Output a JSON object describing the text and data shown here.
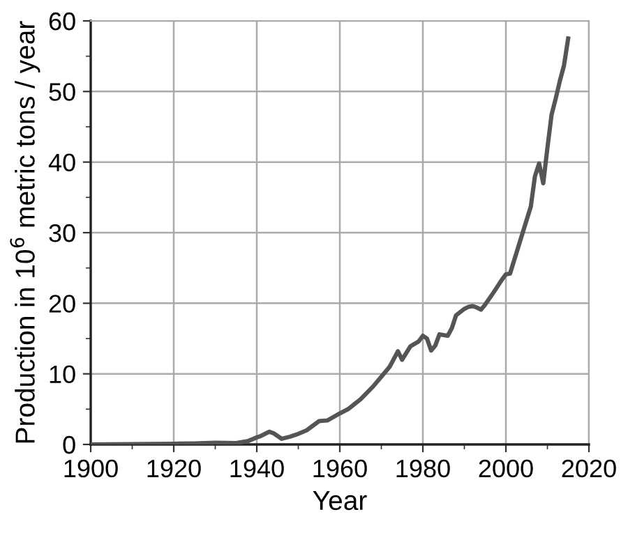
{
  "chart_data": {
    "type": "line",
    "xlabel": "Year",
    "ylabel": "Production in 10$^{6}$ metric tons / year",
    "x": [
      1900,
      1910,
      1920,
      1925,
      1930,
      1935,
      1938,
      1940,
      1941,
      1943,
      1944,
      1946,
      1948,
      1950,
      1952,
      1955,
      1957,
      1960,
      1962,
      1965,
      1968,
      1970,
      1972,
      1974,
      1975,
      1977,
      1979,
      1980,
      1981,
      1982,
      1983,
      1984,
      1986,
      1987,
      1988,
      1990,
      1991,
      1992,
      1993,
      1994,
      1995,
      1997,
      1999,
      2000,
      2001,
      2003,
      2005,
      2006,
      2007,
      2008,
      2009,
      2010,
      2011,
      2012,
      2013,
      2014,
      2015
    ],
    "series": [
      {
        "color": "#555555",
        "values": [
          0.0,
          0.05,
          0.1,
          0.15,
          0.25,
          0.2,
          0.5,
          1.0,
          1.2,
          1.8,
          1.6,
          0.8,
          1.1,
          1.5,
          2.0,
          3.3,
          3.4,
          4.4,
          5.0,
          6.4,
          8.2,
          9.6,
          11.0,
          13.2,
          12.0,
          13.9,
          14.6,
          15.4,
          15.0,
          13.3,
          14.0,
          15.6,
          15.4,
          16.5,
          18.3,
          19.2,
          19.5,
          19.6,
          19.4,
          19.1,
          19.8,
          21.5,
          23.3,
          24.1,
          24.2,
          28.0,
          31.8,
          33.7,
          38.0,
          39.8,
          37.0,
          42.0,
          46.7,
          49.0,
          51.5,
          53.7,
          57.5
        ]
      }
    ],
    "xlim": [
      1900,
      2020
    ],
    "ylim": [
      0,
      60
    ],
    "xticks": [
      1900,
      1920,
      1940,
      1960,
      1980,
      2000,
      2020
    ],
    "yticks": [
      0,
      10,
      20,
      30,
      40,
      50,
      60
    ],
    "grid": true,
    "legend": false,
    "marker": "none",
    "line_style": "solid"
  }
}
